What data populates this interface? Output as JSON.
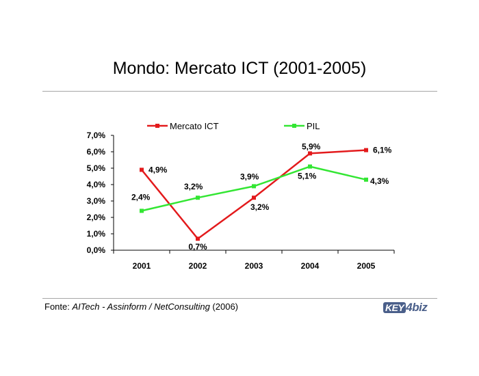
{
  "page": {
    "title": "Mondo: Mercato ICT (2001-2005)"
  },
  "footer": {
    "prefix": "Fonte: ",
    "source": "AITech - Assinform / NetConsulting",
    "year": " (2006)"
  },
  "logo": {
    "part1": "KEY",
    "part2": "4",
    "part3": "biz"
  },
  "chart_data": {
    "type": "line",
    "categories": [
      "2001",
      "2002",
      "2003",
      "2004",
      "2005"
    ],
    "ylim": [
      0,
      7
    ],
    "yticks": [
      "0,0%",
      "1,0%",
      "2,0%",
      "3,0%",
      "4,0%",
      "5,0%",
      "6,0%",
      "7,0%"
    ],
    "legend_position": "top",
    "series": [
      {
        "name": "Mercato ICT",
        "color": "#e31a1c",
        "values": [
          4.9,
          0.7,
          3.2,
          5.9,
          6.1
        ],
        "labels": [
          "4,9%",
          "0,7%",
          "3,2%",
          "5,9%",
          "6,1%"
        ]
      },
      {
        "name": "PIL",
        "color": "#33e633",
        "values": [
          2.4,
          3.2,
          3.9,
          5.1,
          4.3
        ],
        "labels": [
          "2,4%",
          "3,2%",
          "3,9%",
          "5,1%",
          "4,3%"
        ]
      }
    ]
  }
}
